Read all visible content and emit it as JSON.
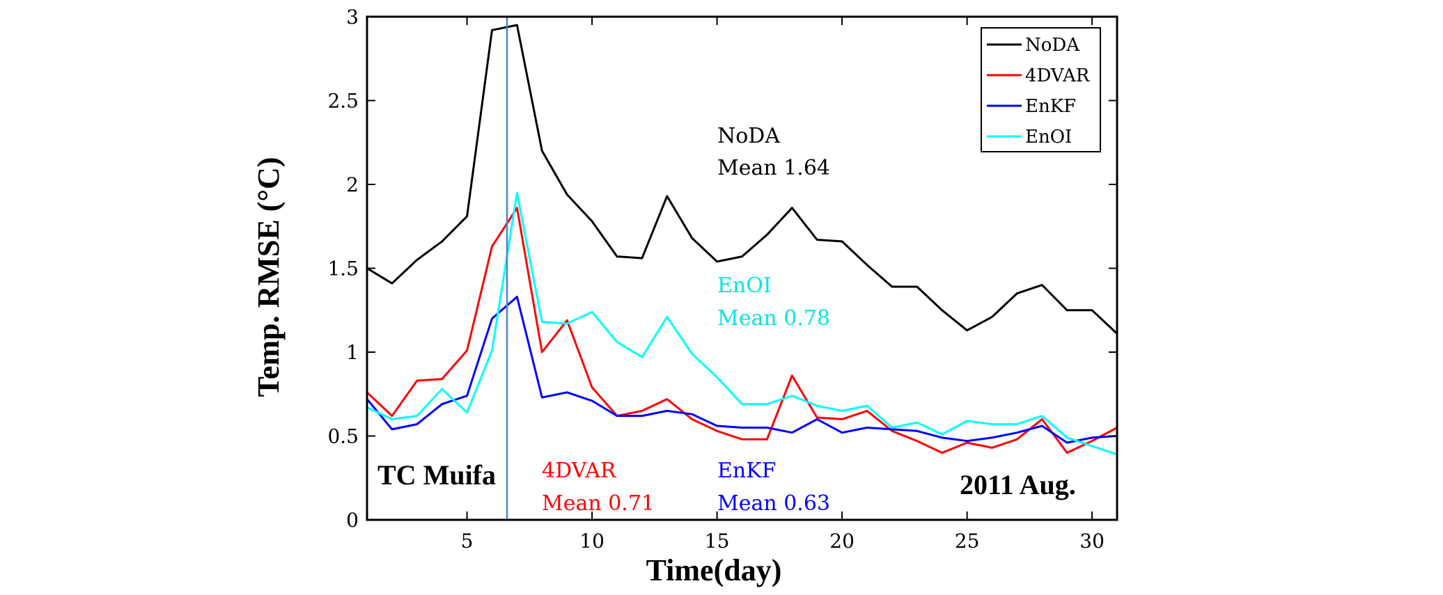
{
  "chart_data": {
    "type": "line",
    "xlabel": "Time(day)",
    "ylabel": "Temp. RMSE (°C)",
    "xlim": [
      1,
      31
    ],
    "ylim": [
      0,
      3
    ],
    "xticks": [
      5,
      10,
      15,
      20,
      25,
      30
    ],
    "yticks": [
      0,
      0.5,
      1,
      1.5,
      2,
      2.5,
      3
    ],
    "ytick_labels": [
      "0",
      "0.5",
      "1",
      "1.5",
      "2",
      "2.5",
      "3"
    ],
    "x": [
      1,
      2,
      3,
      4,
      5,
      6,
      7,
      8,
      9,
      10,
      11,
      12,
      13,
      14,
      15,
      16,
      17,
      18,
      19,
      20,
      21,
      22,
      23,
      24,
      25,
      26,
      27,
      28,
      29,
      30,
      31
    ],
    "series": [
      {
        "name": "NoDA",
        "color": "#000000",
        "values": [
          1.5,
          1.41,
          1.55,
          1.66,
          1.81,
          2.92,
          2.95,
          2.2,
          1.94,
          1.78,
          1.57,
          1.56,
          1.93,
          1.68,
          1.54,
          1.57,
          1.7,
          1.86,
          1.67,
          1.66,
          1.52,
          1.39,
          1.39,
          1.25,
          1.13,
          1.21,
          1.35,
          1.4,
          1.25,
          1.25,
          1.11
        ]
      },
      {
        "name": "4DVAR",
        "color": "#ff0000",
        "values": [
          0.76,
          0.62,
          0.83,
          0.84,
          1.01,
          1.63,
          1.86,
          1.0,
          1.19,
          0.79,
          0.62,
          0.65,
          0.72,
          0.6,
          0.53,
          0.48,
          0.48,
          0.86,
          0.61,
          0.6,
          0.65,
          0.53,
          0.47,
          0.4,
          0.46,
          0.43,
          0.48,
          0.6,
          0.4,
          0.47,
          0.55
        ]
      },
      {
        "name": "EnKF",
        "color": "#0000ff",
        "values": [
          0.72,
          0.54,
          0.57,
          0.69,
          0.74,
          1.2,
          1.33,
          0.73,
          0.76,
          0.71,
          0.62,
          0.62,
          0.65,
          0.63,
          0.56,
          0.55,
          0.55,
          0.52,
          0.6,
          0.52,
          0.55,
          0.54,
          0.53,
          0.49,
          0.47,
          0.49,
          0.52,
          0.56,
          0.46,
          0.49,
          0.5
        ]
      },
      {
        "name": "EnOI",
        "color": "#00ffff",
        "values": [
          0.67,
          0.6,
          0.62,
          0.78,
          0.64,
          1.01,
          1.95,
          1.18,
          1.17,
          1.24,
          1.06,
          0.97,
          1.21,
          0.99,
          0.85,
          0.69,
          0.69,
          0.74,
          0.68,
          0.65,
          0.68,
          0.55,
          0.58,
          0.51,
          0.59,
          0.57,
          0.57,
          0.62,
          0.49,
          0.44,
          0.39
        ]
      }
    ],
    "event_line": {
      "x": 6.6,
      "color": "#4a86c8"
    },
    "annotations": {
      "noda_name": "NoDA",
      "noda_mean": "Mean  1.64",
      "enoi_name": "EnOI",
      "enoi_mean": "Mean  0.78",
      "fdvar_name": "4DVAR",
      "fdvar_mean": "Mean  0.71",
      "enkf_name": "EnKF",
      "enkf_mean": "Mean  0.63",
      "tc_label": "TC Muifa",
      "date_label": "2011 Aug."
    },
    "legend_position": "top-right"
  }
}
